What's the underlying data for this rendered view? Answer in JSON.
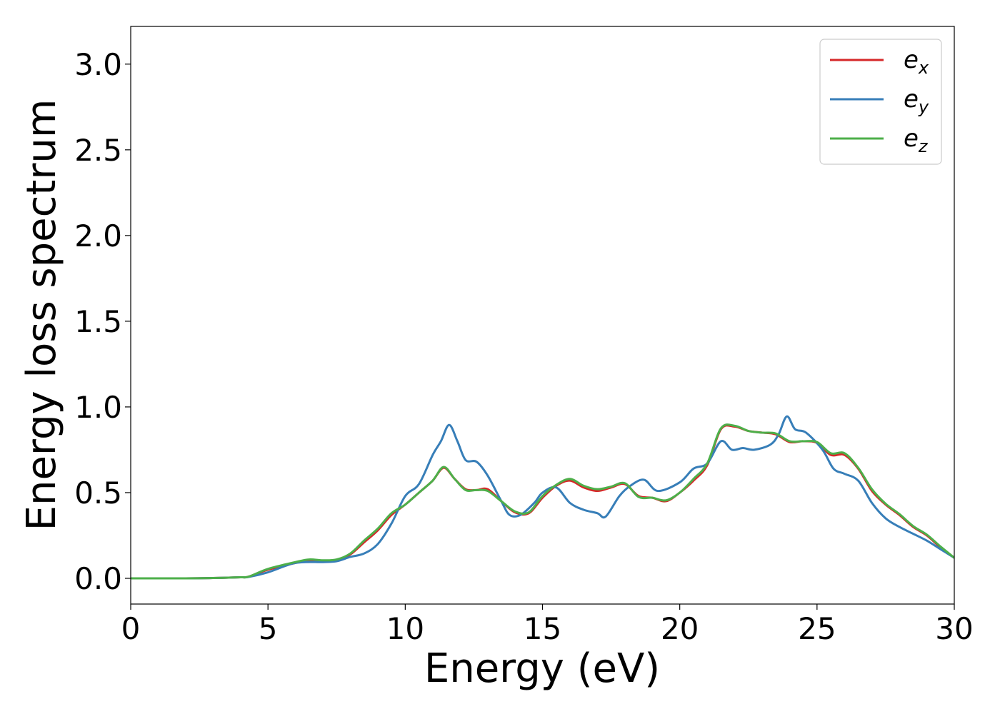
{
  "chart_data": {
    "type": "line",
    "title": "",
    "xlabel": "Energy (eV)",
    "ylabel": "Energy loss spectrum",
    "xlim": [
      0,
      30
    ],
    "ylim": [
      -0.15,
      3.22
    ],
    "xticks": [
      0,
      5,
      10,
      15,
      20,
      25,
      30
    ],
    "xtick_labels": [
      "0",
      "5",
      "10",
      "15",
      "20",
      "25",
      "30"
    ],
    "yticks": [
      0.0,
      0.5,
      1.0,
      1.5,
      2.0,
      2.5,
      3.0
    ],
    "ytick_labels": [
      "0.0",
      "0.5",
      "1.0",
      "1.5",
      "2.0",
      "2.5",
      "3.0"
    ],
    "grid": false,
    "legend_position": "top-right",
    "series": [
      {
        "name": "e_x",
        "label_base": "e",
        "label_sub": "x",
        "color": "#d62728",
        "points": [
          [
            0,
            0.0
          ],
          [
            2,
            0.0
          ],
          [
            3,
            0.002
          ],
          [
            4,
            0.006
          ],
          [
            4.3,
            0.01
          ],
          [
            5,
            0.05
          ],
          [
            6,
            0.09
          ],
          [
            6.5,
            0.105
          ],
          [
            7,
            0.1
          ],
          [
            7.5,
            0.105
          ],
          [
            8,
            0.14
          ],
          [
            8.5,
            0.21
          ],
          [
            9,
            0.28
          ],
          [
            9.5,
            0.37
          ],
          [
            10,
            0.43
          ],
          [
            10.5,
            0.5
          ],
          [
            11,
            0.57
          ],
          [
            11.4,
            0.645
          ],
          [
            11.8,
            0.58
          ],
          [
            12.2,
            0.52
          ],
          [
            12.6,
            0.515
          ],
          [
            13,
            0.52
          ],
          [
            13.5,
            0.45
          ],
          [
            14,
            0.385
          ],
          [
            14.5,
            0.38
          ],
          [
            15,
            0.47
          ],
          [
            15.5,
            0.54
          ],
          [
            16,
            0.57
          ],
          [
            16.5,
            0.53
          ],
          [
            17,
            0.51
          ],
          [
            17.5,
            0.53
          ],
          [
            18,
            0.55
          ],
          [
            18.5,
            0.48
          ],
          [
            19,
            0.47
          ],
          [
            19.5,
            0.45
          ],
          [
            20,
            0.5
          ],
          [
            20.5,
            0.57
          ],
          [
            21,
            0.66
          ],
          [
            21.5,
            0.87
          ],
          [
            22,
            0.885
          ],
          [
            22.5,
            0.86
          ],
          [
            23,
            0.85
          ],
          [
            23.5,
            0.84
          ],
          [
            24,
            0.795
          ],
          [
            24.5,
            0.8
          ],
          [
            25,
            0.79
          ],
          [
            25.5,
            0.72
          ],
          [
            26,
            0.72
          ],
          [
            26.5,
            0.64
          ],
          [
            27,
            0.51
          ],
          [
            27.5,
            0.43
          ],
          [
            28,
            0.37
          ],
          [
            28.5,
            0.3
          ],
          [
            29,
            0.25
          ],
          [
            29.5,
            0.18
          ],
          [
            30,
            0.12
          ]
        ]
      },
      {
        "name": "e_y",
        "label_base": "e",
        "label_sub": "y",
        "color": "#377eb8",
        "points": [
          [
            0,
            0.0
          ],
          [
            2,
            0.0
          ],
          [
            3,
            0.002
          ],
          [
            4,
            0.006
          ],
          [
            4.3,
            0.008
          ],
          [
            5,
            0.035
          ],
          [
            6,
            0.09
          ],
          [
            7,
            0.095
          ],
          [
            7.5,
            0.1
          ],
          [
            8,
            0.125
          ],
          [
            8.5,
            0.145
          ],
          [
            9,
            0.2
          ],
          [
            9.5,
            0.32
          ],
          [
            10,
            0.48
          ],
          [
            10.5,
            0.55
          ],
          [
            11,
            0.72
          ],
          [
            11.3,
            0.8
          ],
          [
            11.6,
            0.895
          ],
          [
            11.9,
            0.8
          ],
          [
            12.2,
            0.69
          ],
          [
            12.6,
            0.68
          ],
          [
            13,
            0.6
          ],
          [
            13.5,
            0.45
          ],
          [
            13.8,
            0.37
          ],
          [
            14.2,
            0.37
          ],
          [
            14.7,
            0.44
          ],
          [
            15,
            0.5
          ],
          [
            15.5,
            0.53
          ],
          [
            16,
            0.44
          ],
          [
            16.5,
            0.4
          ],
          [
            17,
            0.38
          ],
          [
            17.3,
            0.36
          ],
          [
            17.8,
            0.48
          ],
          [
            18.2,
            0.54
          ],
          [
            18.7,
            0.575
          ],
          [
            19.2,
            0.51
          ],
          [
            20,
            0.56
          ],
          [
            20.5,
            0.64
          ],
          [
            21,
            0.67
          ],
          [
            21.5,
            0.8
          ],
          [
            21.9,
            0.75
          ],
          [
            22.3,
            0.76
          ],
          [
            22.7,
            0.75
          ],
          [
            23.3,
            0.78
          ],
          [
            23.6,
            0.84
          ],
          [
            23.9,
            0.945
          ],
          [
            24.2,
            0.87
          ],
          [
            24.6,
            0.85
          ],
          [
            25.2,
            0.75
          ],
          [
            25.6,
            0.64
          ],
          [
            26,
            0.61
          ],
          [
            26.5,
            0.57
          ],
          [
            27,
            0.44
          ],
          [
            27.5,
            0.35
          ],
          [
            28,
            0.3
          ],
          [
            28.5,
            0.26
          ],
          [
            29,
            0.22
          ],
          [
            29.5,
            0.17
          ],
          [
            30,
            0.12
          ]
        ]
      },
      {
        "name": "e_z",
        "label_base": "e",
        "label_sub": "z",
        "color": "#4daf4a",
        "points": [
          [
            0,
            0.0
          ],
          [
            2,
            0.0
          ],
          [
            3,
            0.002
          ],
          [
            4,
            0.006
          ],
          [
            4.3,
            0.01
          ],
          [
            5,
            0.055
          ],
          [
            6,
            0.095
          ],
          [
            6.5,
            0.11
          ],
          [
            7,
            0.105
          ],
          [
            7.5,
            0.11
          ],
          [
            8,
            0.145
          ],
          [
            8.5,
            0.22
          ],
          [
            9,
            0.29
          ],
          [
            9.5,
            0.38
          ],
          [
            10,
            0.43
          ],
          [
            10.5,
            0.5
          ],
          [
            11,
            0.57
          ],
          [
            11.4,
            0.65
          ],
          [
            11.8,
            0.58
          ],
          [
            12.2,
            0.515
          ],
          [
            12.6,
            0.515
          ],
          [
            13,
            0.51
          ],
          [
            13.5,
            0.45
          ],
          [
            14,
            0.39
          ],
          [
            14.5,
            0.385
          ],
          [
            15,
            0.48
          ],
          [
            15.5,
            0.545
          ],
          [
            16,
            0.58
          ],
          [
            16.5,
            0.54
          ],
          [
            17,
            0.52
          ],
          [
            17.5,
            0.535
          ],
          [
            18,
            0.555
          ],
          [
            18.5,
            0.475
          ],
          [
            19,
            0.47
          ],
          [
            19.5,
            0.455
          ],
          [
            20,
            0.5
          ],
          [
            20.5,
            0.58
          ],
          [
            21,
            0.67
          ],
          [
            21.5,
            0.875
          ],
          [
            22,
            0.89
          ],
          [
            22.5,
            0.86
          ],
          [
            23,
            0.85
          ],
          [
            23.5,
            0.845
          ],
          [
            24,
            0.8
          ],
          [
            24.5,
            0.8
          ],
          [
            25,
            0.795
          ],
          [
            25.5,
            0.73
          ],
          [
            26,
            0.73
          ],
          [
            26.5,
            0.645
          ],
          [
            27,
            0.52
          ],
          [
            27.5,
            0.435
          ],
          [
            28,
            0.375
          ],
          [
            28.5,
            0.305
          ],
          [
            29,
            0.255
          ],
          [
            29.5,
            0.185
          ],
          [
            30,
            0.12
          ]
        ]
      }
    ]
  }
}
